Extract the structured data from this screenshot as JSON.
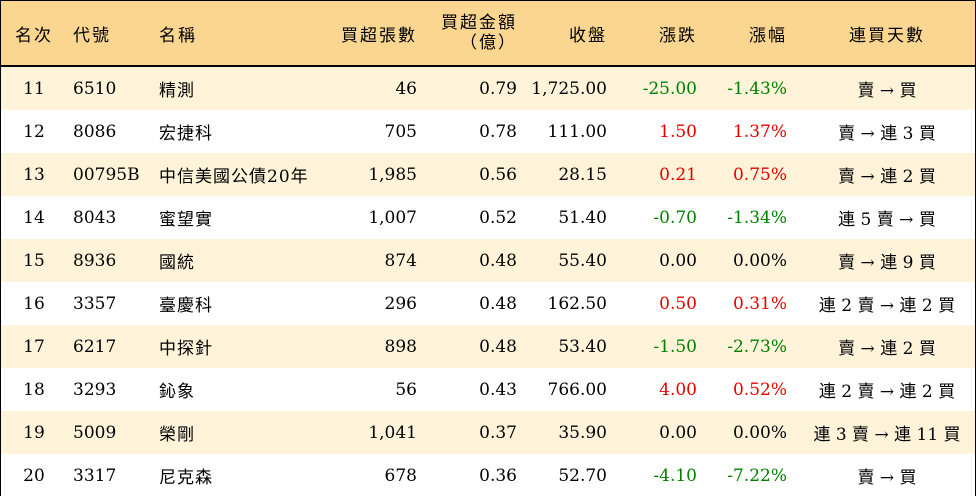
{
  "header": {
    "rank": "名次",
    "code": "代號",
    "name": "名稱",
    "volume": "買超張數",
    "amount_line1": "買超金額",
    "amount_line2": "（億）",
    "close": "收盤",
    "change": "漲跌",
    "change_pct": "漲幅",
    "streak": "連買天數"
  },
  "colors": {
    "header_bg": "#fbd690",
    "row_alt_bg": "#fff3d9",
    "up": "#e60000",
    "down": "#008000"
  },
  "rows": [
    {
      "rank": "11",
      "code": "6510",
      "name": "精測",
      "volume": "46",
      "amount": "0.79",
      "close": "1,725.00",
      "change": "-25.00",
      "change_pct": "-1.43%",
      "direction": "down",
      "streak": "賣 → 買"
    },
    {
      "rank": "12",
      "code": "8086",
      "name": "宏捷科",
      "volume": "705",
      "amount": "0.78",
      "close": "111.00",
      "change": "1.50",
      "change_pct": "1.37%",
      "direction": "up",
      "streak": "賣 → 連 3 買"
    },
    {
      "rank": "13",
      "code": "00795B",
      "name": "中信美國公債20年",
      "volume": "1,985",
      "amount": "0.56",
      "close": "28.15",
      "change": "0.21",
      "change_pct": "0.75%",
      "direction": "up",
      "streak": "賣 → 連 2 買"
    },
    {
      "rank": "14",
      "code": "8043",
      "name": "蜜望實",
      "volume": "1,007",
      "amount": "0.52",
      "close": "51.40",
      "change": "-0.70",
      "change_pct": "-1.34%",
      "direction": "down",
      "streak": "連 5 賣 → 買"
    },
    {
      "rank": "15",
      "code": "8936",
      "name": "國統",
      "volume": "874",
      "amount": "0.48",
      "close": "55.40",
      "change": "0.00",
      "change_pct": "0.00%",
      "direction": "flat",
      "streak": "賣 → 連 9 買"
    },
    {
      "rank": "16",
      "code": "3357",
      "name": "臺慶科",
      "volume": "296",
      "amount": "0.48",
      "close": "162.50",
      "change": "0.50",
      "change_pct": "0.31%",
      "direction": "up",
      "streak": "連 2 賣 → 連 2 買"
    },
    {
      "rank": "17",
      "code": "6217",
      "name": "中探針",
      "volume": "898",
      "amount": "0.48",
      "close": "53.40",
      "change": "-1.50",
      "change_pct": "-2.73%",
      "direction": "down",
      "streak": "賣 → 連 2 買"
    },
    {
      "rank": "18",
      "code": "3293",
      "name": "鈊象",
      "volume": "56",
      "amount": "0.43",
      "close": "766.00",
      "change": "4.00",
      "change_pct": "0.52%",
      "direction": "up",
      "streak": "連 2 賣 → 連 2 買"
    },
    {
      "rank": "19",
      "code": "5009",
      "name": "榮剛",
      "volume": "1,041",
      "amount": "0.37",
      "close": "35.90",
      "change": "0.00",
      "change_pct": "0.00%",
      "direction": "flat",
      "streak": "連 3 賣 → 連 11 買"
    },
    {
      "rank": "20",
      "code": "3317",
      "name": "尼克森",
      "volume": "678",
      "amount": "0.36",
      "close": "52.70",
      "change": "-4.10",
      "change_pct": "-7.22%",
      "direction": "down",
      "streak": "賣 → 買"
    }
  ]
}
